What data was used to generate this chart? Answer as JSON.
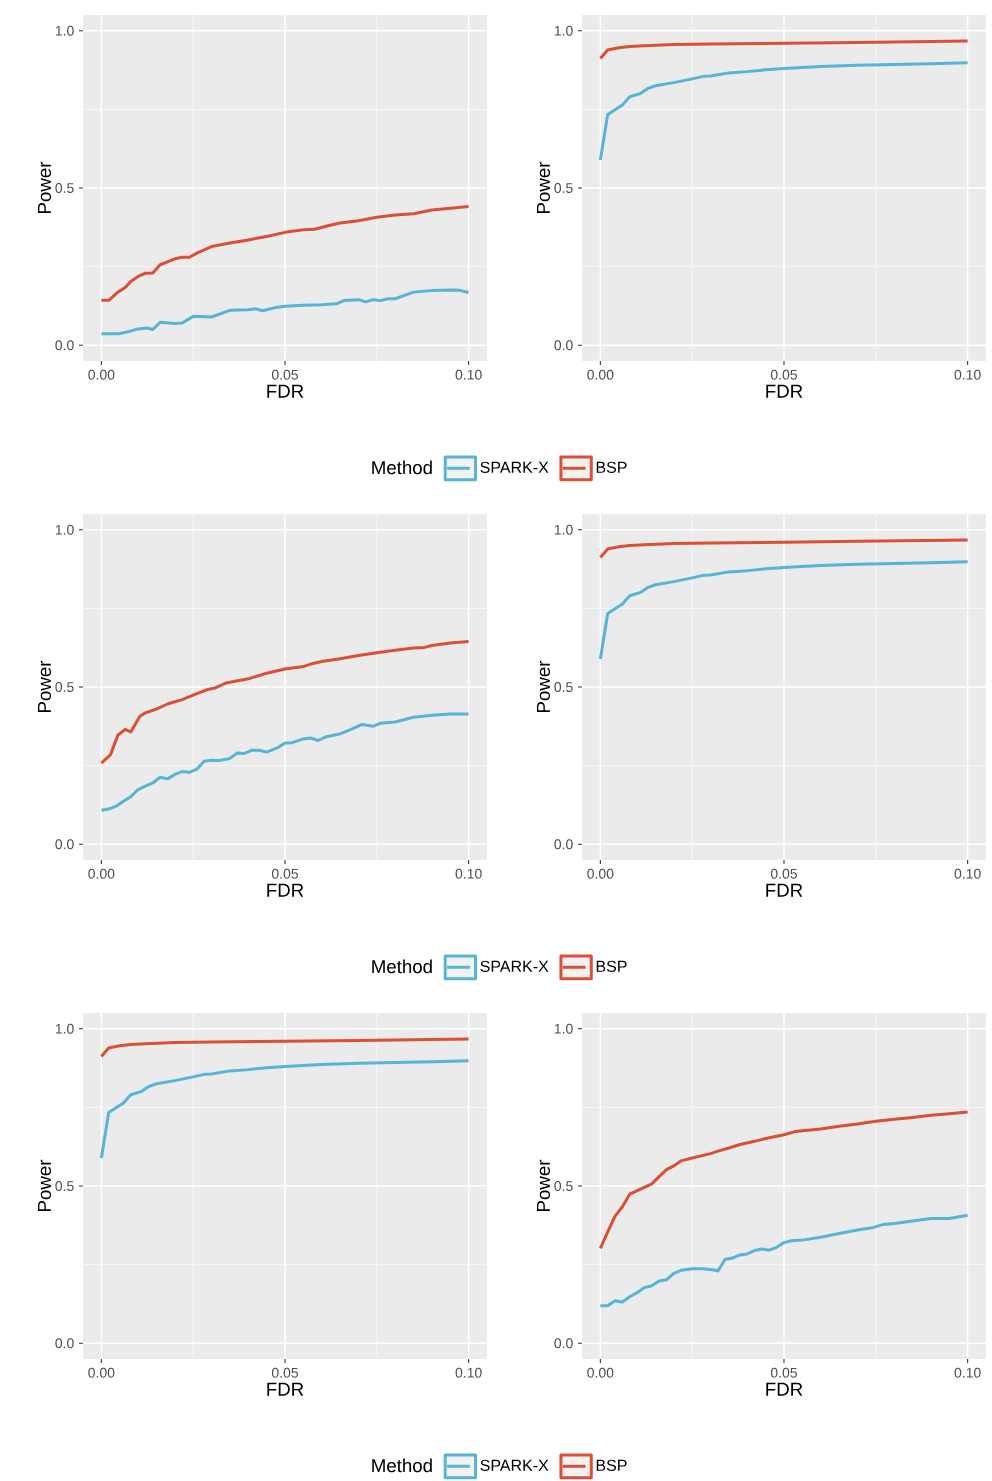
{
  "chart_data": [
    {
      "type": "line",
      "xlabel": "FDR",
      "ylabel": "Power",
      "xlim": [
        -0.005,
        0.105
      ],
      "ylim": [
        -0.05,
        1.05
      ],
      "xticks": [
        {
          "value": 0,
          "label": "0.00"
        },
        {
          "value": 0.05,
          "label": "0.05"
        },
        {
          "value": 0.1,
          "label": "0.10"
        }
      ],
      "yticks": [
        {
          "value": 0,
          "label": "0.0"
        },
        {
          "value": 0.5,
          "label": "0.5"
        },
        {
          "value": 1,
          "label": "1.0"
        }
      ],
      "grid": true,
      "legend": "bottom",
      "legend_title": "Method",
      "line_style": "solid",
      "marker": "none",
      "series": [
        {
          "name": "SPARK-X",
          "color": "#56b4d6",
          "x": [
            0,
            0.005,
            0.0075,
            0.01,
            0.0125,
            0.014,
            0.016,
            0.02,
            0.022,
            0.025,
            0.03,
            0.035,
            0.04,
            0.042,
            0.044,
            0.047,
            0.05,
            0.055,
            0.06,
            0.064,
            0.066,
            0.07,
            0.072,
            0.074,
            0.076,
            0.078,
            0.08,
            0.085,
            0.09,
            0.095,
            0.0975,
            0.1
          ],
          "values": [
            0.037,
            0.037,
            0.044,
            0.052,
            0.055,
            0.05,
            0.073,
            0.069,
            0.071,
            0.092,
            0.09,
            0.111,
            0.113,
            0.116,
            0.11,
            0.119,
            0.124,
            0.127,
            0.129,
            0.132,
            0.142,
            0.145,
            0.138,
            0.145,
            0.142,
            0.148,
            0.148,
            0.169,
            0.174,
            0.176,
            0.175,
            0.168
          ]
        },
        {
          "name": "BSP",
          "color": "#db4f34",
          "x": [
            0,
            0.002,
            0.0045,
            0.0065,
            0.008,
            0.01,
            0.012,
            0.014,
            0.016,
            0.018,
            0.02,
            0.022,
            0.024,
            0.026,
            0.03,
            0.035,
            0.04,
            0.045,
            0.05,
            0.055,
            0.058,
            0.062,
            0.065,
            0.07,
            0.075,
            0.08,
            0.085,
            0.09,
            0.095,
            0.1
          ],
          "values": [
            0.143,
            0.143,
            0.169,
            0.184,
            0.203,
            0.219,
            0.229,
            0.23,
            0.256,
            0.265,
            0.275,
            0.28,
            0.28,
            0.293,
            0.314,
            0.325,
            0.335,
            0.346,
            0.359,
            0.367,
            0.369,
            0.381,
            0.389,
            0.396,
            0.407,
            0.414,
            0.418,
            0.43,
            0.436,
            0.441
          ]
        }
      ]
    },
    {
      "type": "line",
      "xlabel": "FDR",
      "ylabel": "Power",
      "xlim": [
        -0.005,
        0.105
      ],
      "ylim": [
        -0.05,
        1.05
      ],
      "xticks": [
        {
          "value": 0,
          "label": "0.00"
        },
        {
          "value": 0.05,
          "label": "0.05"
        },
        {
          "value": 0.1,
          "label": "0.10"
        }
      ],
      "yticks": [
        {
          "value": 0,
          "label": "0.0"
        },
        {
          "value": 0.5,
          "label": "0.5"
        },
        {
          "value": 1,
          "label": "1.0"
        }
      ],
      "grid": true,
      "line_style": "solid",
      "marker": "none",
      "series": [
        {
          "color": "#56b4d6",
          "x": [
            0,
            0.002,
            0.006,
            0.008,
            0.011,
            0.013,
            0.015,
            0.02,
            0.025,
            0.028,
            0.03,
            0.035,
            0.04,
            0.045,
            0.05,
            0.06,
            0.07,
            0.08,
            0.09,
            0.1
          ],
          "values": [
            0.589,
            0.734,
            0.764,
            0.79,
            0.801,
            0.817,
            0.825,
            0.835,
            0.847,
            0.855,
            0.856,
            0.866,
            0.87,
            0.876,
            0.88,
            0.886,
            0.89,
            0.893,
            0.895,
            0.898
          ]
        },
        {
          "color": "#db4f34",
          "x": [
            0,
            0.002,
            0.005,
            0.008,
            0.012,
            0.02,
            0.03,
            0.05,
            0.07,
            0.1
          ],
          "values": [
            0.912,
            0.939,
            0.946,
            0.95,
            0.952,
            0.956,
            0.958,
            0.96,
            0.963,
            0.967
          ]
        }
      ]
    },
    {
      "type": "line",
      "xlabel": "FDR",
      "ylabel": "Power",
      "xlim": [
        -0.005,
        0.105
      ],
      "ylim": [
        -0.05,
        1.05
      ],
      "xticks": [
        {
          "value": 0,
          "label": "0.00"
        },
        {
          "value": 0.05,
          "label": "0.05"
        },
        {
          "value": 0.1,
          "label": "0.10"
        }
      ],
      "yticks": [
        {
          "value": 0,
          "label": "0.0"
        },
        {
          "value": 0.5,
          "label": "0.5"
        },
        {
          "value": 1,
          "label": "1.0"
        }
      ],
      "grid": true,
      "legend": "bottom",
      "legend_title": "Method",
      "line_style": "solid",
      "marker": "none",
      "series": [
        {
          "name": "SPARK-X",
          "color": "#56b4d6",
          "x": [
            0,
            0.002,
            0.004,
            0.006,
            0.008,
            0.01,
            0.012,
            0.014,
            0.016,
            0.018,
            0.02,
            0.022,
            0.024,
            0.026,
            0.028,
            0.03,
            0.032,
            0.035,
            0.037,
            0.039,
            0.041,
            0.043,
            0.045,
            0.048,
            0.05,
            0.052,
            0.055,
            0.057,
            0.059,
            0.061,
            0.065,
            0.068,
            0.071,
            0.074,
            0.076,
            0.08,
            0.085,
            0.09,
            0.095,
            0.1
          ],
          "values": [
            0.108,
            0.112,
            0.121,
            0.137,
            0.151,
            0.174,
            0.185,
            0.195,
            0.213,
            0.208,
            0.222,
            0.231,
            0.229,
            0.239,
            0.264,
            0.267,
            0.266,
            0.273,
            0.29,
            0.289,
            0.299,
            0.299,
            0.293,
            0.307,
            0.322,
            0.323,
            0.335,
            0.338,
            0.33,
            0.341,
            0.351,
            0.365,
            0.381,
            0.375,
            0.385,
            0.389,
            0.404,
            0.41,
            0.414,
            0.414
          ]
        },
        {
          "name": "BSP",
          "color": "#db4f34",
          "x": [
            0,
            0.0025,
            0.0045,
            0.0065,
            0.008,
            0.0105,
            0.012,
            0.015,
            0.018,
            0.022,
            0.026,
            0.029,
            0.031,
            0.034,
            0.04,
            0.045,
            0.05,
            0.055,
            0.057,
            0.06,
            0.065,
            0.07,
            0.075,
            0.08,
            0.085,
            0.088,
            0.09,
            0.095,
            0.1
          ],
          "values": [
            0.258,
            0.285,
            0.347,
            0.365,
            0.357,
            0.407,
            0.418,
            0.43,
            0.446,
            0.46,
            0.479,
            0.492,
            0.497,
            0.513,
            0.526,
            0.544,
            0.557,
            0.565,
            0.573,
            0.581,
            0.59,
            0.6,
            0.609,
            0.617,
            0.624,
            0.626,
            0.632,
            0.64,
            0.645
          ]
        }
      ]
    },
    {
      "type": "line",
      "xlabel": "FDR",
      "ylabel": "Power",
      "xlim": [
        -0.005,
        0.105
      ],
      "ylim": [
        -0.05,
        1.05
      ],
      "xticks": [
        {
          "value": 0,
          "label": "0.00"
        },
        {
          "value": 0.05,
          "label": "0.05"
        },
        {
          "value": 0.1,
          "label": "0.10"
        }
      ],
      "yticks": [
        {
          "value": 0,
          "label": "0.0"
        },
        {
          "value": 0.5,
          "label": "0.5"
        },
        {
          "value": 1,
          "label": "1.0"
        }
      ],
      "grid": true,
      "line_style": "solid",
      "marker": "none",
      "series": [
        {
          "color": "#56b4d6",
          "x": [
            0,
            0.002,
            0.006,
            0.008,
            0.011,
            0.013,
            0.015,
            0.02,
            0.025,
            0.028,
            0.03,
            0.035,
            0.04,
            0.045,
            0.05,
            0.06,
            0.07,
            0.08,
            0.09,
            0.1
          ],
          "values": [
            0.589,
            0.734,
            0.764,
            0.79,
            0.801,
            0.817,
            0.825,
            0.835,
            0.847,
            0.855,
            0.856,
            0.866,
            0.87,
            0.876,
            0.88,
            0.886,
            0.89,
            0.893,
            0.895,
            0.898
          ]
        },
        {
          "color": "#db4f34",
          "x": [
            0,
            0.002,
            0.005,
            0.008,
            0.012,
            0.02,
            0.03,
            0.05,
            0.07,
            0.1
          ],
          "values": [
            0.912,
            0.939,
            0.946,
            0.95,
            0.952,
            0.956,
            0.958,
            0.96,
            0.963,
            0.967
          ]
        }
      ]
    },
    {
      "type": "line",
      "xlabel": "FDR",
      "ylabel": "Power",
      "xlim": [
        -0.005,
        0.105
      ],
      "ylim": [
        -0.05,
        1.05
      ],
      "xticks": [
        {
          "value": 0,
          "label": "0.00"
        },
        {
          "value": 0.05,
          "label": "0.05"
        },
        {
          "value": 0.1,
          "label": "0.10"
        }
      ],
      "yticks": [
        {
          "value": 0,
          "label": "0.0"
        },
        {
          "value": 0.5,
          "label": "0.5"
        },
        {
          "value": 1,
          "label": "1.0"
        }
      ],
      "grid": true,
      "legend": "bottom",
      "legend_title": "Method",
      "line_style": "solid",
      "marker": "none",
      "series": [
        {
          "name": "SPARK-X",
          "color": "#56b4d6",
          "x": [
            0,
            0.002,
            0.006,
            0.008,
            0.011,
            0.013,
            0.015,
            0.02,
            0.025,
            0.028,
            0.03,
            0.035,
            0.04,
            0.045,
            0.05,
            0.06,
            0.07,
            0.08,
            0.09,
            0.1
          ],
          "values": [
            0.589,
            0.734,
            0.764,
            0.79,
            0.801,
            0.817,
            0.825,
            0.835,
            0.847,
            0.855,
            0.856,
            0.866,
            0.87,
            0.876,
            0.88,
            0.886,
            0.89,
            0.893,
            0.895,
            0.898
          ]
        },
        {
          "name": "BSP",
          "color": "#db4f34",
          "x": [
            0,
            0.002,
            0.005,
            0.008,
            0.012,
            0.02,
            0.03,
            0.05,
            0.07,
            0.1
          ],
          "values": [
            0.912,
            0.939,
            0.946,
            0.95,
            0.952,
            0.956,
            0.958,
            0.96,
            0.963,
            0.967
          ]
        }
      ]
    },
    {
      "type": "line",
      "xlabel": "FDR",
      "ylabel": "Power",
      "xlim": [
        -0.005,
        0.105
      ],
      "ylim": [
        -0.05,
        1.05
      ],
      "xticks": [
        {
          "value": 0,
          "label": "0.00"
        },
        {
          "value": 0.05,
          "label": "0.05"
        },
        {
          "value": 0.1,
          "label": "0.10"
        }
      ],
      "yticks": [
        {
          "value": 0,
          "label": "0.0"
        },
        {
          "value": 0.5,
          "label": "0.5"
        },
        {
          "value": 1,
          "label": "1.0"
        }
      ],
      "grid": true,
      "line_style": "solid",
      "marker": "none",
      "series": [
        {
          "color": "#56b4d6",
          "x": [
            0,
            0.002,
            0.004,
            0.006,
            0.008,
            0.01,
            0.012,
            0.014,
            0.016,
            0.018,
            0.02,
            0.022,
            0.025,
            0.028,
            0.031,
            0.032,
            0.034,
            0.036,
            0.038,
            0.04,
            0.042,
            0.044,
            0.046,
            0.048,
            0.05,
            0.052,
            0.055,
            0.06,
            0.065,
            0.07,
            0.074,
            0.077,
            0.08,
            0.085,
            0.09,
            0.095,
            0.1
          ],
          "values": [
            0.119,
            0.119,
            0.135,
            0.131,
            0.148,
            0.161,
            0.177,
            0.183,
            0.198,
            0.202,
            0.222,
            0.232,
            0.237,
            0.237,
            0.233,
            0.23,
            0.267,
            0.271,
            0.281,
            0.284,
            0.295,
            0.3,
            0.296,
            0.305,
            0.32,
            0.326,
            0.328,
            0.337,
            0.349,
            0.36,
            0.367,
            0.378,
            0.381,
            0.389,
            0.397,
            0.397,
            0.407
          ]
        },
        {
          "color": "#db4f34",
          "x": [
            0,
            0.002,
            0.004,
            0.006,
            0.008,
            0.01,
            0.014,
            0.016,
            0.018,
            0.02,
            0.022,
            0.025,
            0.03,
            0.032,
            0.035,
            0.038,
            0.042,
            0.045,
            0.05,
            0.053,
            0.06,
            0.065,
            0.07,
            0.075,
            0.08,
            0.085,
            0.09,
            0.095,
            0.1
          ],
          "values": [
            0.302,
            0.354,
            0.404,
            0.434,
            0.474,
            0.485,
            0.507,
            0.53,
            0.552,
            0.564,
            0.58,
            0.589,
            0.603,
            0.611,
            0.621,
            0.632,
            0.642,
            0.651,
            0.663,
            0.673,
            0.681,
            0.69,
            0.697,
            0.706,
            0.712,
            0.718,
            0.725,
            0.73,
            0.735
          ]
        }
      ]
    }
  ]
}
